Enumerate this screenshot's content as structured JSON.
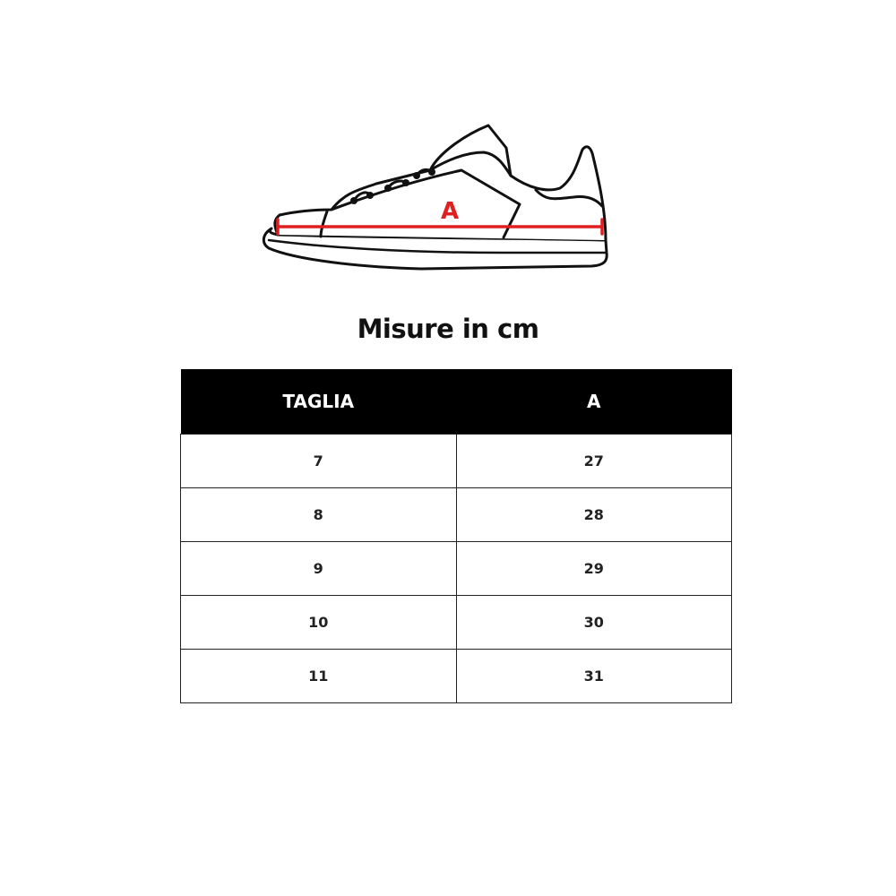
{
  "diagram": {
    "measure_label": "A",
    "measure_color": "#e02020"
  },
  "title": "Misure in cm",
  "table": {
    "headers": [
      "TAGLIA",
      "A"
    ],
    "rows": [
      [
        "7",
        "27"
      ],
      [
        "8",
        "28"
      ],
      [
        "9",
        "29"
      ],
      [
        "10",
        "30"
      ],
      [
        "11",
        "31"
      ]
    ]
  }
}
